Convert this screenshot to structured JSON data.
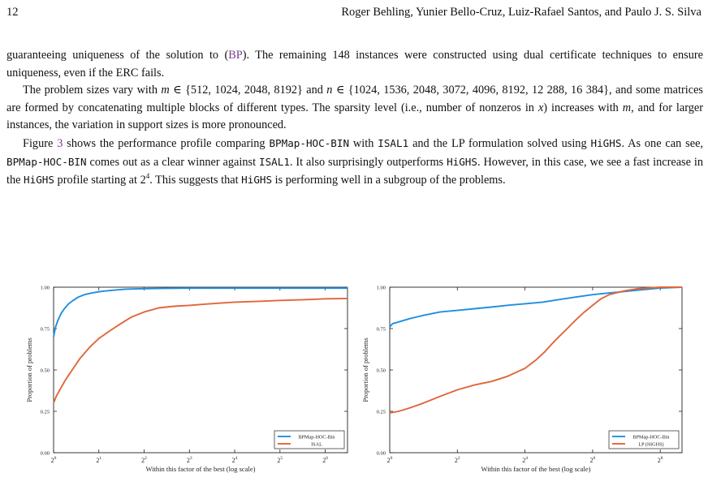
{
  "header": {
    "page_number": "12",
    "authors": "Roger Behling, Yunier Bello-Cruz, Luiz-Rafael Santos, and Paulo J. S. Silva"
  },
  "paragraphs": {
    "p1_a": "guaranteeing uniqueness of the solution to (",
    "p1_link": "BP",
    "p1_b": "). The remaining 148 instances were constructed using dual certificate techniques to ensure uniqueness, even if the ERC fails.",
    "p2_a": "The problem sizes vary with ",
    "p2_m": "m",
    "p2_b": " ∈ {512, 1024, 2048, 8192} and ",
    "p2_n": "n",
    "p2_c": " ∈ {1024, 1536, 2048, 3072, 4096, 8192, 12 288, 16 384}, and some matrices are formed by concatenating multiple blocks of different types. The sparsity level (i.e., number of nonzeros in ",
    "p2_x": "x",
    "p2_d": ") increases with ",
    "p2_m2": "m",
    "p2_e": ", and for larger instances, the variation in support sizes is more pronounced.",
    "p3_a": "Figure ",
    "p3_fig": "3",
    "p3_b": " shows the performance profile comparing ",
    "p3_code1": "BPMap-HOC-BIN",
    "p3_c": " with ",
    "p3_code2": "ISAL1",
    "p3_d": " and the LP formulation solved using ",
    "p3_code3": "HiGHS",
    "p3_e": ". As one can see, ",
    "p3_code4": "BPMap-HOC-BIN",
    "p3_f": " comes out as a clear winner against ",
    "p3_code5": "ISAL1",
    "p3_g": ". It also surprisingly outperforms ",
    "p3_code6": "HiGHS",
    "p3_h": ". However, in this case, we see a fast increase in the ",
    "p3_code7": "HiGHS",
    "p3_i": " profile starting at 2",
    "p3_sup": "4",
    "p3_j": ". This suggests that ",
    "p3_code8": "HiGHS",
    "p3_k": " is performing well in a subgroup of the problems."
  },
  "chart_data": [
    {
      "type": "line",
      "xscale": "log2",
      "xlim": [
        1,
        90
      ],
      "ylim": [
        0,
        1
      ],
      "xticks": [
        1,
        2,
        4,
        8,
        16,
        32,
        64
      ],
      "xtick_base": "2",
      "xtick_exponents": [
        "0",
        "1",
        "2",
        "3",
        "4",
        "5",
        "6"
      ],
      "yticks": [
        0,
        0.25,
        0.5,
        0.75,
        1
      ],
      "ytick_labels": [
        "0.00",
        "0.25",
        "0.50",
        "0.75",
        "1.00"
      ],
      "xlabel": "Within this factor of the best (log scale)",
      "ylabel": "Proportion of problems",
      "legend_position": "bottom-right",
      "series": [
        {
          "name": "BPMap-HOC-Bin",
          "color": "#1f8fe0",
          "x": [
            1,
            1.03,
            1.07,
            1.12,
            1.18,
            1.26,
            1.35,
            1.46,
            1.6,
            1.8,
            2.1,
            2.5,
            3,
            4,
            5.5,
            8,
            16,
            32,
            64,
            89,
            90
          ],
          "y": [
            0.7,
            0.76,
            0.8,
            0.84,
            0.87,
            0.9,
            0.92,
            0.94,
            0.955,
            0.965,
            0.975,
            0.982,
            0.988,
            0.991,
            0.993,
            0.994,
            0.994,
            0.994,
            0.994,
            0.994,
            1.0
          ]
        },
        {
          "name": "ISAL",
          "color": "#e0663a",
          "x": [
            1,
            1.04,
            1.1,
            1.2,
            1.33,
            1.5,
            1.75,
            2,
            2.4,
            2.8,
            3.3,
            4,
            5,
            6.3,
            8,
            11,
            16,
            24,
            32,
            48,
            64,
            90
          ],
          "y": [
            0.3,
            0.34,
            0.38,
            0.44,
            0.5,
            0.57,
            0.64,
            0.69,
            0.74,
            0.78,
            0.82,
            0.85,
            0.875,
            0.885,
            0.89,
            0.9,
            0.91,
            0.915,
            0.92,
            0.925,
            0.93,
            0.932
          ]
        }
      ]
    },
    {
      "type": "line",
      "xscale": "log2",
      "xlim": [
        1,
        400
      ],
      "ylim": [
        0,
        1
      ],
      "xticks": [
        1,
        4,
        16,
        64,
        256
      ],
      "xtick_base": "2",
      "xtick_exponents": [
        "0",
        "2",
        "4",
        "6",
        "8"
      ],
      "yticks": [
        0,
        0.25,
        0.5,
        0.75,
        1
      ],
      "ytick_labels": [
        "0.00",
        "0.25",
        "0.50",
        "0.75",
        "1.00"
      ],
      "xlabel": "Within this factor of the best (log scale)",
      "ylabel": "Proportion of problems",
      "legend_position": "bottom-right",
      "series": [
        {
          "name": "BPMap-HOC-Bin",
          "color": "#1f8fe0",
          "x": [
            1,
            1.06,
            1.2,
            1.5,
            2,
            2.8,
            4,
            5.7,
            8,
            11,
            16,
            23,
            32,
            45,
            64,
            90,
            128,
            180,
            256,
            400
          ],
          "y": [
            0.76,
            0.78,
            0.79,
            0.81,
            0.83,
            0.85,
            0.86,
            0.87,
            0.88,
            0.89,
            0.9,
            0.91,
            0.925,
            0.94,
            0.955,
            0.965,
            0.975,
            0.985,
            0.995,
            1.0
          ]
        },
        {
          "name": "LP (HiGHS)",
          "color": "#e0663a",
          "x": [
            1,
            1.2,
            1.5,
            2,
            2.8,
            4,
            5.7,
            8,
            11,
            16,
            20,
            24,
            28,
            32,
            38,
            45,
            54,
            64,
            76,
            90,
            110,
            128,
            160,
            200,
            256,
            400
          ],
          "y": [
            0.24,
            0.25,
            0.27,
            0.3,
            0.34,
            0.38,
            0.41,
            0.43,
            0.46,
            0.51,
            0.56,
            0.61,
            0.66,
            0.7,
            0.75,
            0.8,
            0.85,
            0.89,
            0.93,
            0.955,
            0.97,
            0.98,
            0.99,
            0.995,
            1.0,
            1.0
          ]
        }
      ]
    }
  ]
}
